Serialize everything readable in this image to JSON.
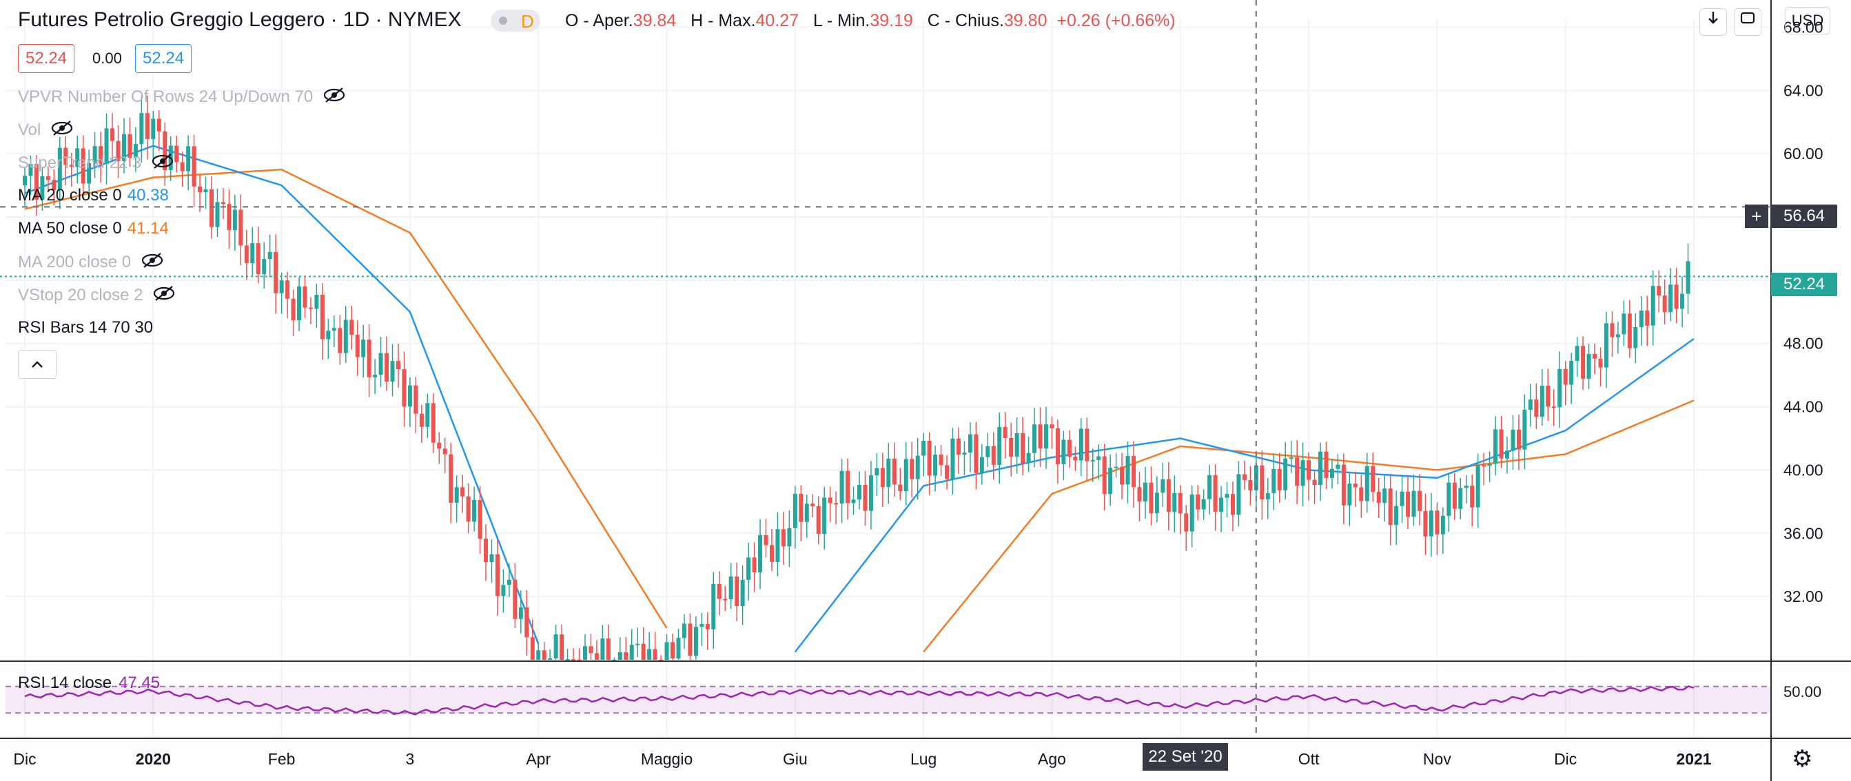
{
  "header": {
    "symbol_title": "Futures Petrolio Greggio Leggero · 1D · NYMEX",
    "market_status": "D",
    "ohlc": {
      "o_label": "O - Aper.",
      "o_value": "39.84",
      "h_label": "H - Max.",
      "h_value": "40.27",
      "l_label": "L - Min.",
      "l_value": "39.19",
      "c_label": "C - Chius.",
      "c_value": "39.80",
      "change": "+0.26 (+0.66%)"
    },
    "currency": "USD",
    "buttons": {
      "scale_icon": "arrow-down-icon",
      "fullscreen_icon": "fullscreen-icon"
    }
  },
  "quote": {
    "sell": "52.24",
    "spread": "0.00",
    "buy": "52.24"
  },
  "indicators": [
    {
      "label": "VPVR Number Of Rows 24 Up/Down 70",
      "hidden": true
    },
    {
      "label": "Vol",
      "hidden": true
    },
    {
      "label": "SuperTrend 22 3",
      "hidden": true
    },
    {
      "label": "MA 20 close 0",
      "value": "40.38",
      "color": "#2196f3",
      "hidden": false
    },
    {
      "label": "MA 50 close 0",
      "value": "41.14",
      "color": "#f57c24",
      "hidden": false
    },
    {
      "label": "MA 200 close 0",
      "hidden": true
    },
    {
      "label": "VStop 20 close 2",
      "hidden": true
    },
    {
      "label": "RSI Bars 14 70 30",
      "hidden": false
    }
  ],
  "price_tags": {
    "crosshair": "56.64",
    "last": "52.24",
    "last_color": "#26a69a"
  },
  "rsi": {
    "label": "RSI 14 close",
    "value": "47.45",
    "color": "#9c27b0",
    "axis_tick": "50.00",
    "upper": 70,
    "lower": 30
  },
  "crosshair_date": "22 Set '20",
  "colors": {
    "up": "#26a69a",
    "down": "#ef5350",
    "ma20": "#2196f3",
    "ma50": "#f57c24",
    "rsi": "#9c27b0"
  },
  "chart_data": [
    {
      "type": "candlestick",
      "title": "Futures Petrolio Greggio Leggero · 1D · NYMEX",
      "x_ticks": [
        "Dic",
        "2020",
        "Feb",
        "3",
        "Apr",
        "Maggio",
        "Giu",
        "Lug",
        "Ago",
        "Set",
        "Ott",
        "Nov",
        "Dic",
        "2021"
      ],
      "y_ticks": [
        "68.00",
        "64.00",
        "60.00",
        "56.00",
        "52.00",
        "48.00",
        "44.00",
        "40.00",
        "36.00",
        "32.00"
      ],
      "ylim": [
        28.0,
        68.5
      ],
      "grid": true,
      "series": [
        {
          "name": "MA 20 close 0",
          "x": [
            "Dic",
            "2020",
            "Feb",
            "3",
            "Apr",
            "Maggio",
            "Giu",
            "Lug",
            "Ago",
            "Set",
            "Ott",
            "Nov",
            "Dic",
            "2021"
          ],
          "values": [
            57.5,
            60.5,
            58.0,
            50.0,
            29.0,
            null,
            28.5,
            39.0,
            40.8,
            42.0,
            40.0,
            39.5,
            42.5,
            48.3
          ]
        },
        {
          "name": "MA 50 close 0",
          "x": [
            "Dic",
            "2020",
            "Feb",
            "3",
            "Apr",
            "Maggio",
            "Giu",
            "Lug",
            "Ago",
            "Set",
            "Ott",
            "Nov",
            "Dic",
            "2021"
          ],
          "values": [
            56.5,
            58.5,
            59.0,
            55.0,
            43.0,
            30.0,
            null,
            28.5,
            38.5,
            41.5,
            40.8,
            40.0,
            41.0,
            44.4
          ]
        },
        {
          "name": "Close",
          "x": [
            "Dic",
            "2020",
            "Feb",
            "3",
            "Apr",
            "Maggio",
            "Giu",
            "Lug",
            "Ago",
            "Set",
            "Ott",
            "Nov",
            "Dic",
            "2021"
          ],
          "values": [
            58.0,
            61.5,
            51.5,
            45.0,
            28.0,
            28.0,
            37.0,
            40.5,
            42.0,
            37.5,
            40.2,
            36.8,
            46.0,
            52.24
          ]
        }
      ]
    },
    {
      "type": "line",
      "title": "RSI 14 close",
      "y_ticks": [
        "50.00"
      ],
      "ylim": [
        0,
        100
      ],
      "band": [
        30,
        70
      ],
      "series": [
        {
          "name": "RSI 14 close",
          "x": [
            "Dic",
            "2020",
            "Feb",
            "3",
            "Apr",
            "Maggio",
            "Giu",
            "Lug",
            "Ago",
            "Set",
            "Ott",
            "Nov",
            "Dic",
            "2021"
          ],
          "values": [
            55,
            63,
            38,
            30,
            48,
            52,
            62,
            60,
            58,
            40,
            55,
            35,
            63,
            68
          ]
        }
      ]
    }
  ]
}
